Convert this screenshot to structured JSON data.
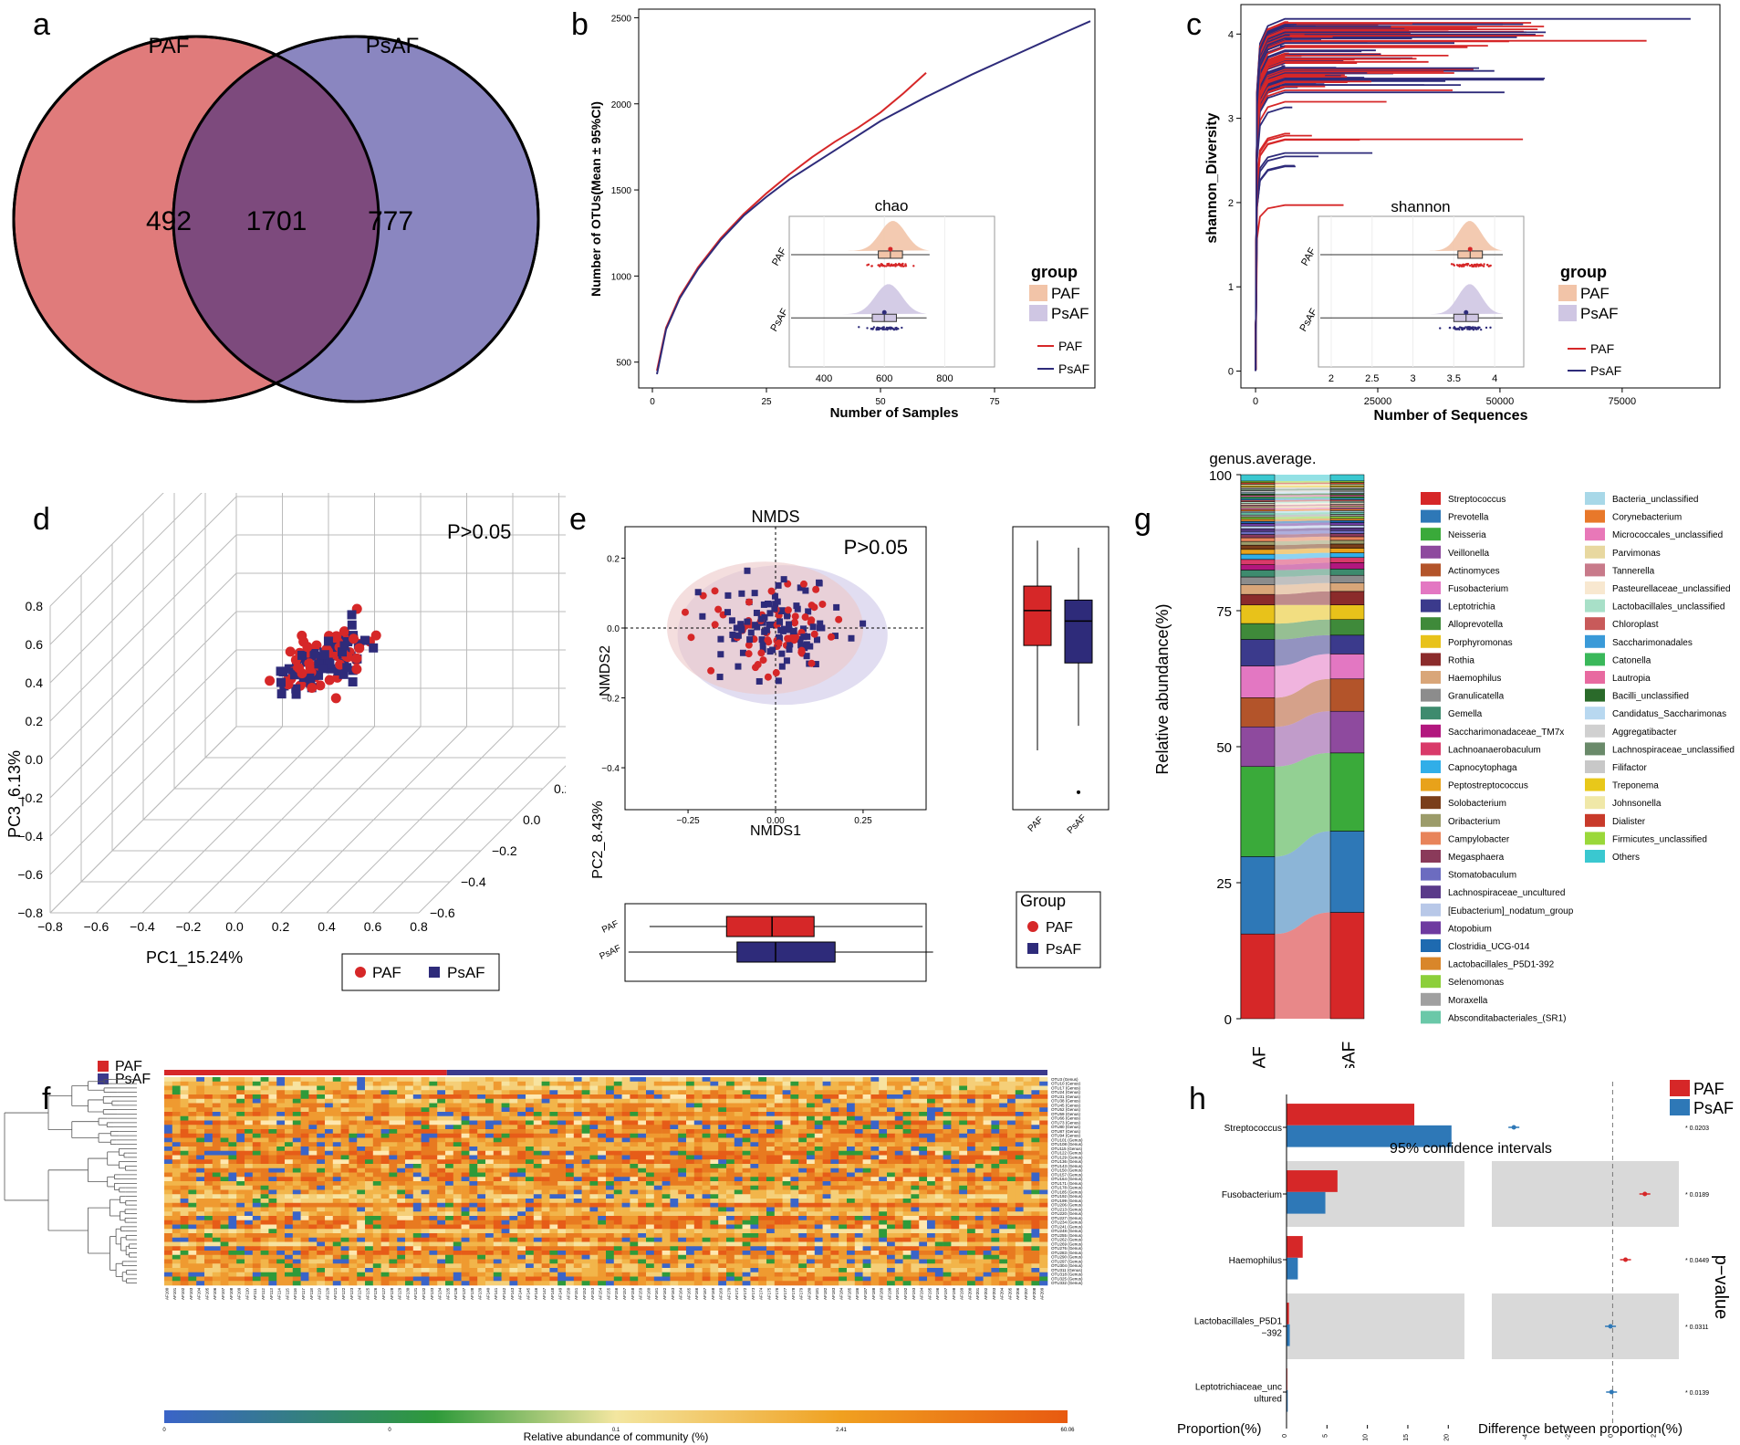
{
  "panels": {
    "a": "a",
    "b": "b",
    "c": "c",
    "d": "d",
    "e": "e",
    "f": "f",
    "g": "g",
    "h": "h"
  },
  "colors": {
    "paf": "#d62728",
    "psaf": "#2e2b7a",
    "paf_fill": "#e07b7b",
    "psaf_fill": "#8a86c0",
    "overlap": "#7d4a7d"
  },
  "chart_data": [
    {
      "id": "a",
      "type": "venn",
      "sets": [
        {
          "name": "PAF",
          "unique": 492
        },
        {
          "name": "PsAF",
          "unique": 777
        }
      ],
      "intersection": 1701
    },
    {
      "id": "b",
      "type": "line",
      "title": "",
      "xlabel": "Number of Samples",
      "ylabel": "Number of OTUs(Mean ± 95%CI)",
      "xlim": [
        -3,
        97
      ],
      "ylim": [
        350,
        2550
      ],
      "xticks": [
        0,
        25,
        50,
        75
      ],
      "yticks": [
        500,
        1000,
        1500,
        2000,
        2500
      ],
      "series": [
        {
          "name": "PAF",
          "x": [
            1,
            3,
            6,
            10,
            15,
            20,
            25,
            30,
            35,
            40,
            45,
            50,
            55,
            60
          ],
          "y": [
            450,
            700,
            880,
            1050,
            1220,
            1360,
            1480,
            1590,
            1690,
            1780,
            1860,
            1950,
            2060,
            2180
          ]
        },
        {
          "name": "PsAF",
          "x": [
            1,
            3,
            6,
            10,
            15,
            20,
            25,
            30,
            40,
            50,
            60,
            70,
            80,
            90,
            96
          ],
          "y": [
            430,
            690,
            870,
            1040,
            1210,
            1350,
            1460,
            1560,
            1730,
            1900,
            2040,
            2170,
            2290,
            2410,
            2480
          ]
        }
      ],
      "legend_title": "group",
      "legend": [
        "PAF",
        "PsAF"
      ],
      "inset": {
        "title": "chao",
        "groups": [
          "PAF",
          "PsAF"
        ],
        "xticks": [
          400,
          600,
          800
        ],
        "xlim": [
          300,
          950
        ],
        "box": {
          "PAF": [
            480,
            580,
            620,
            660,
            750
          ],
          "PsAF": [
            460,
            560,
            600,
            640,
            740
          ]
        }
      }
    },
    {
      "id": "c",
      "type": "line",
      "xlabel": "Number of Sequences",
      "ylabel": "shannon_Diversity",
      "xlim": [
        -3000,
        95000
      ],
      "ylim": [
        -0.2,
        4.35
      ],
      "xticks": [
        0,
        25000,
        50000,
        75000
      ],
      "yticks": [
        0,
        1,
        2,
        3,
        4
      ],
      "series": [
        {
          "name": "PAF"
        },
        {
          "name": "PsAF"
        }
      ],
      "legend_title": "group",
      "legend": [
        "PAF",
        "PsAF"
      ],
      "inset": {
        "title": "shannon",
        "groups": [
          "PAF",
          "PsAF"
        ],
        "xticks": [
          2.0,
          2.5,
          3.0,
          3.5,
          4.0
        ],
        "xlim": [
          1.9,
          4.3
        ],
        "box": {
          "PAF": [
            3.2,
            3.55,
            3.7,
            3.85,
            4.1
          ],
          "PsAF": [
            3.2,
            3.5,
            3.65,
            3.8,
            4.1
          ]
        }
      }
    },
    {
      "id": "d",
      "type": "scatter",
      "annotation": "P>0.05",
      "xlabel": "PC1_15.24%",
      "ylabel": "PC3_6.13%",
      "xticks": [
        -0.8,
        -0.6,
        -0.4,
        -0.2,
        0.0,
        0.2,
        0.4,
        0.6,
        0.8
      ],
      "zticks": [
        -0.8,
        -0.6,
        -0.4,
        -0.2,
        0.0,
        0.2,
        0.4,
        0.6,
        0.8
      ],
      "yticks": [
        -0.6,
        -0.4,
        -0.2,
        0.0,
        0.2,
        0.4,
        0.6
      ],
      "legend": [
        "PAF",
        "PsAF"
      ]
    },
    {
      "id": "e",
      "type": "scatter",
      "title": "NMDS",
      "annotation": "P>0.05",
      "xlabel": "NMDS1",
      "ylabel": "NMDS2",
      "side_label": "PC2_8.43%",
      "xticks": [
        -0.25,
        0.0,
        0.25
      ],
      "yticks": [
        0.2,
        0.0,
        -0.2,
        -0.4
      ],
      "xlim": [
        -0.43,
        0.43
      ],
      "ylim": [
        -0.52,
        0.29
      ],
      "legend_title": "Group",
      "legend": [
        "PAF",
        "PsAF"
      ],
      "box_groups": [
        "PAF",
        "PsAF"
      ],
      "box_x": {
        "PAF": [
          -0.36,
          -0.14,
          -0.01,
          0.11,
          0.42
        ],
        "PsAF": [
          -0.42,
          -0.11,
          0.0,
          0.17,
          0.45
        ]
      },
      "box_y": {
        "PAF": [
          -0.35,
          -0.05,
          0.05,
          0.12,
          0.25
        ],
        "PsAF": [
          -0.28,
          -0.1,
          0.02,
          0.08,
          0.23
        ]
      }
    },
    {
      "id": "g",
      "type": "stacked_bar",
      "title": "genus.average.",
      "ylabel": "Relative abundance(%)",
      "categories": [
        "PAF",
        "PsAF"
      ],
      "yticks": [
        0,
        25,
        50,
        75,
        100
      ],
      "series": [
        {
          "name": "Streptococcus",
          "color": "#d62728",
          "values": [
            16,
            20.4
          ]
        },
        {
          "name": "Prevotella",
          "color": "#2e78b7",
          "values": [
            14.6,
            15.6
          ]
        },
        {
          "name": "Neisseria",
          "color": "#3aaa3a",
          "values": [
            17,
            15
          ]
        },
        {
          "name": "Veillonella",
          "color": "#8e4a9e",
          "values": [
            7.5,
            8
          ]
        },
        {
          "name": "Actinomyces",
          "color": "#b3542a",
          "values": [
            5.5,
            6.2
          ]
        },
        {
          "name": "Fusobacterium",
          "color": "#e377c2",
          "values": [
            6,
            4.8
          ]
        },
        {
          "name": "Leptotrichia",
          "color": "#3b3a8c",
          "values": [
            5,
            3.6
          ]
        },
        {
          "name": "Alloprevotella",
          "color": "#3f8a3a",
          "values": [
            3,
            3
          ]
        },
        {
          "name": "Porphyromonas",
          "color": "#e8c21a",
          "values": [
            3.5,
            2.8
          ]
        },
        {
          "name": "Rothia",
          "color": "#8b2b2b",
          "values": [
            2,
            2.6
          ]
        },
        {
          "name": "Haemophilus",
          "color": "#d9a679",
          "values": [
            1.8,
            1.6
          ]
        },
        {
          "name": "Granulicatella",
          "color": "#8c8c8c",
          "values": [
            1.5,
            1.5
          ]
        },
        {
          "name": "Gemella",
          "color": "#3e8b6e",
          "values": [
            1.3,
            1.2
          ]
        },
        {
          "name": "Saccharimonadaceae_TM7x",
          "color": "#b2177e",
          "values": [
            1,
            1.2
          ]
        },
        {
          "name": "Lachnoanaerobaculum",
          "color": "#d93a6a",
          "values": [
            1,
            1
          ]
        },
        {
          "name": "Capnocytophaga",
          "color": "#31aee8",
          "values": [
            1,
            0.9
          ]
        },
        {
          "name": "Peptostreptococcus",
          "color": "#e8a21a",
          "values": [
            0.9,
            0.9
          ]
        },
        {
          "name": "Solobacterium",
          "color": "#7a3e1a",
          "values": [
            0.8,
            0.8
          ]
        },
        {
          "name": "Oribacterium",
          "color": "#9c9c6a",
          "values": [
            0.7,
            0.7
          ]
        },
        {
          "name": "Campylobacter",
          "color": "#e8845a",
          "values": [
            0.7,
            0.7
          ]
        },
        {
          "name": "Megasphaera",
          "color": "#8a3a5a",
          "values": [
            0.6,
            0.6
          ]
        },
        {
          "name": "Stomatobaculum",
          "color": "#6c6cc0",
          "values": [
            0.6,
            0.6
          ]
        },
        {
          "name": "Lachnospiraceae_uncultured",
          "color": "#5a3a8a",
          "values": [
            0.5,
            0.5
          ]
        },
        {
          "name": "[Eubacterium]_nodatum_group",
          "color": "#b8c8e8",
          "values": [
            0.5,
            0.5
          ]
        },
        {
          "name": "Atopobium",
          "color": "#6e3aa0",
          "values": [
            0.5,
            0.5
          ]
        },
        {
          "name": "Clostridia_UCG-014",
          "color": "#1e6ab0",
          "values": [
            0.4,
            0.4
          ]
        },
        {
          "name": "Lactobacillales_P5D1-392",
          "color": "#d9862a",
          "values": [
            0.4,
            0.4
          ]
        },
        {
          "name": "Selenomonas",
          "color": "#8ccf3a",
          "values": [
            0.4,
            0.4
          ]
        },
        {
          "name": "Moraxella",
          "color": "#a0a0a0",
          "values": [
            0.4,
            0.4
          ]
        },
        {
          "name": "Absconditabacteriales_(SR1)",
          "color": "#6ac8a8",
          "values": [
            0.4,
            0.4
          ]
        },
        {
          "name": "Bacteria_unclassified",
          "color": "#a8d8e8",
          "values": [
            0.3,
            0.3
          ]
        },
        {
          "name": "Corynebacterium",
          "color": "#e8782a",
          "values": [
            0.3,
            0.3
          ]
        },
        {
          "name": "Micrococcales_unclassified",
          "color": "#e878b8",
          "values": [
            0.3,
            0.3
          ]
        },
        {
          "name": "Parvimonas",
          "color": "#e8d8a0",
          "values": [
            0.3,
            0.3
          ]
        },
        {
          "name": "Tannerella",
          "color": "#c87a8a",
          "values": [
            0.3,
            0.3
          ]
        },
        {
          "name": "Pasteurellaceae_unclassified",
          "color": "#f8e8d0",
          "values": [
            0.3,
            0.3
          ]
        },
        {
          "name": "Lactobacillales_unclassified",
          "color": "#a8e0c8",
          "values": [
            0.3,
            0.3
          ]
        },
        {
          "name": "Chloroplast",
          "color": "#c85a5a",
          "values": [
            0.3,
            0.3
          ]
        },
        {
          "name": "Saccharimonadales",
          "color": "#3a9ad8",
          "values": [
            0.3,
            0.3
          ]
        },
        {
          "name": "Catonella",
          "color": "#3ab85a",
          "values": [
            0.3,
            0.3
          ]
        },
        {
          "name": "Lautropia",
          "color": "#e86aa0",
          "values": [
            0.3,
            0.3
          ]
        },
        {
          "name": "Bacilli_unclassified",
          "color": "#2a6a2a",
          "values": [
            0.3,
            0.3
          ]
        },
        {
          "name": "Candidatus_Saccharimonas",
          "color": "#b8d8f0",
          "values": [
            0.3,
            0.3
          ]
        },
        {
          "name": "Aggregatibacter",
          "color": "#d0d0d0",
          "values": [
            0.3,
            0.3
          ]
        },
        {
          "name": "Lachnospiraceae_unclassified",
          "color": "#6a8a6a",
          "values": [
            0.3,
            0.3
          ]
        },
        {
          "name": "Filifactor",
          "color": "#c8c8c8",
          "values": [
            0.3,
            0.3
          ]
        },
        {
          "name": "Treponema",
          "color": "#e8c81a",
          "values": [
            0.3,
            0.3
          ]
        },
        {
          "name": "Johnsonella",
          "color": "#f0e8a8",
          "values": [
            0.3,
            0.3
          ]
        },
        {
          "name": "Dialister",
          "color": "#c83a2a",
          "values": [
            0.3,
            0.3
          ]
        },
        {
          "name": "Firmicutes_unclassified",
          "color": "#9ad83a",
          "values": [
            0.3,
            0.3
          ]
        },
        {
          "name": "Others",
          "color": "#3ac8d0",
          "values": [
            1.2,
            1.2
          ]
        }
      ]
    },
    {
      "id": "f",
      "type": "heatmap",
      "legend": [
        "PAF",
        "PsAF"
      ],
      "colorbar_label": "Relative abundance of community (%)",
      "colorbar_ticks": [
        "0",
        "0",
        "0.1",
        "2.41",
        "60.06"
      ]
    },
    {
      "id": "h",
      "type": "bar",
      "title": "95% confidence intervals",
      "xlabel": "Proportion(%)",
      "xlabel2": "Difference between proportion(%)",
      "ylabel2": "p−value",
      "categories": [
        "Streptococcus",
        "Fusobacterium",
        "Haemophilus",
        "Lactobacillales_P5D1\n−392",
        "Leptotrichiaceae_unc\nultured"
      ],
      "series": [
        {
          "name": "PAF",
          "values": [
            15.8,
            6.3,
            2.0,
            0.3,
            0.1
          ]
        },
        {
          "name": "PsAF",
          "values": [
            20.4,
            4.8,
            1.4,
            0.4,
            0.15
          ]
        }
      ],
      "xticks": [
        0,
        5,
        10,
        15,
        20
      ],
      "diff": [
        -4.6,
        1.5,
        0.6,
        -0.1,
        -0.05
      ],
      "diff_ticks": [
        -4,
        -2,
        0,
        2
      ],
      "pvalues": [
        "0.0203",
        "0.0189",
        "0.0449",
        "0.0311",
        "0.0139"
      ],
      "legend": [
        "PAF",
        "PsAF"
      ]
    }
  ]
}
